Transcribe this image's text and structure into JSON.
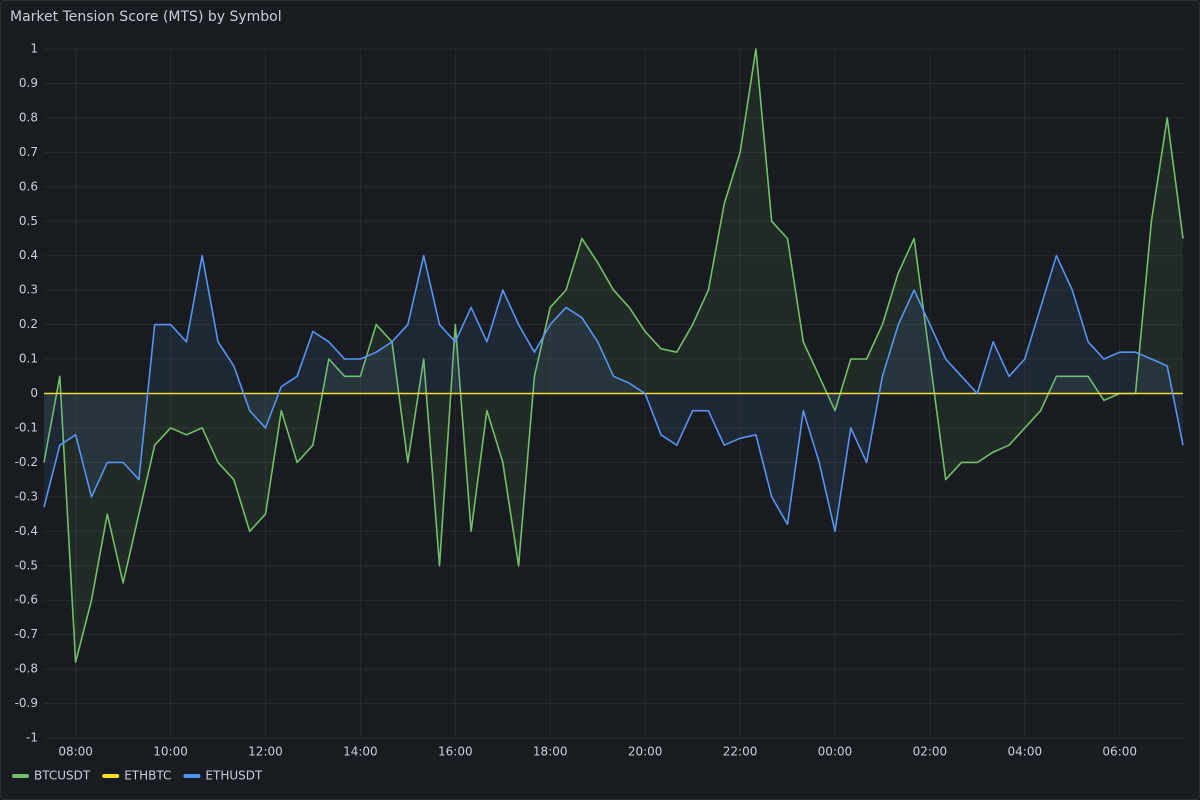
{
  "chart_data": {
    "type": "line",
    "title": "Market Tension Score (MTS) by Symbol",
    "x": [
      "07:20",
      "07:40",
      "08:00",
      "08:20",
      "08:40",
      "09:00",
      "09:20",
      "09:40",
      "10:00",
      "10:20",
      "10:40",
      "11:00",
      "11:20",
      "11:40",
      "12:00",
      "12:20",
      "12:40",
      "13:00",
      "13:20",
      "13:40",
      "14:00",
      "14:20",
      "14:40",
      "15:00",
      "15:20",
      "15:40",
      "16:00",
      "16:20",
      "16:40",
      "17:00",
      "17:20",
      "17:40",
      "18:00",
      "18:20",
      "18:40",
      "19:00",
      "19:20",
      "19:40",
      "20:00",
      "20:20",
      "20:40",
      "21:00",
      "21:20",
      "21:40",
      "22:00",
      "22:20",
      "22:40",
      "23:00",
      "23:20",
      "23:40",
      "00:00",
      "00:20",
      "00:40",
      "01:00",
      "01:20",
      "01:40",
      "02:00",
      "02:20",
      "02:40",
      "03:00",
      "03:20",
      "03:40",
      "04:00",
      "04:20",
      "04:40",
      "05:00",
      "05:20",
      "05:40",
      "06:00",
      "06:20",
      "06:40",
      "07:00",
      "07:20"
    ],
    "xticks": [
      "08:00",
      "10:00",
      "12:00",
      "14:00",
      "16:00",
      "18:00",
      "20:00",
      "22:00",
      "00:00",
      "02:00",
      "04:00",
      "06:00"
    ],
    "ylim": [
      -1,
      1
    ],
    "yticks": [
      1,
      0.9,
      0.8,
      0.7,
      0.6,
      0.5,
      0.4,
      0.3,
      0.2,
      0.1,
      0,
      -0.1,
      -0.2,
      -0.3,
      -0.4,
      -0.5,
      -0.6,
      -0.7,
      -0.8,
      -0.9,
      -1
    ],
    "grid": true,
    "fill_area": true,
    "legend": "bottom-left",
    "series": [
      {
        "name": "BTCUSDT",
        "color": "#73bf69",
        "values": [
          -0.2,
          0.05,
          -0.78,
          -0.6,
          -0.35,
          -0.55,
          -0.35,
          -0.15,
          -0.1,
          -0.12,
          -0.1,
          -0.2,
          -0.25,
          -0.4,
          -0.35,
          -0.05,
          -0.2,
          -0.15,
          0.1,
          0.05,
          0.05,
          0.2,
          0.15,
          -0.2,
          0.1,
          -0.5,
          0.2,
          -0.4,
          -0.05,
          -0.2,
          -0.5,
          0.05,
          0.25,
          0.3,
          0.45,
          0.38,
          0.3,
          0.25,
          0.18,
          0.13,
          0.12,
          0.2,
          0.3,
          0.55,
          0.7,
          1.0,
          0.5,
          0.45,
          0.15,
          0.05,
          -0.05,
          0.1,
          0.1,
          0.2,
          0.35,
          0.45,
          0.1,
          -0.25,
          -0.2,
          -0.2,
          -0.17,
          -0.15,
          -0.1,
          -0.05,
          0.05,
          0.05,
          0.05,
          -0.02,
          0.0,
          0.0,
          0.5,
          0.8,
          0.45
        ]
      },
      {
        "name": "ETHBTC",
        "color": "#fade2a",
        "values": [
          0,
          0,
          0,
          0,
          0,
          0,
          0,
          0,
          0,
          0,
          0,
          0,
          0,
          0,
          0,
          0,
          0,
          0,
          0,
          0,
          0,
          0,
          0,
          0,
          0,
          0,
          0,
          0,
          0,
          0,
          0,
          0,
          0,
          0,
          0,
          0,
          0,
          0,
          0,
          0,
          0,
          0,
          0,
          0,
          0,
          0,
          0,
          0,
          0,
          0,
          0,
          0,
          0,
          0,
          0,
          0,
          0,
          0,
          0,
          0,
          0,
          0,
          0,
          0,
          0,
          0,
          0,
          0,
          0,
          0,
          0,
          0,
          0
        ]
      },
      {
        "name": "ETHUSDT",
        "color": "#5794f2",
        "values": [
          -0.33,
          -0.15,
          -0.12,
          -0.3,
          -0.2,
          -0.2,
          -0.25,
          0.2,
          0.2,
          0.15,
          0.4,
          0.15,
          0.08,
          -0.05,
          -0.1,
          0.02,
          0.05,
          0.18,
          0.15,
          0.1,
          0.1,
          0.12,
          0.15,
          0.2,
          0.4,
          0.2,
          0.15,
          0.25,
          0.15,
          0.3,
          0.2,
          0.12,
          0.2,
          0.25,
          0.22,
          0.15,
          0.05,
          0.03,
          0.0,
          -0.12,
          -0.15,
          -0.05,
          -0.05,
          -0.15,
          -0.13,
          -0.12,
          -0.3,
          -0.38,
          -0.05,
          -0.2,
          -0.4,
          -0.1,
          -0.2,
          0.05,
          0.2,
          0.3,
          0.2,
          0.1,
          0.05,
          0.0,
          0.15,
          0.05,
          0.1,
          0.25,
          0.4,
          0.3,
          0.15,
          0.1,
          0.12,
          0.12,
          0.1,
          0.08,
          -0.15
        ]
      }
    ]
  }
}
